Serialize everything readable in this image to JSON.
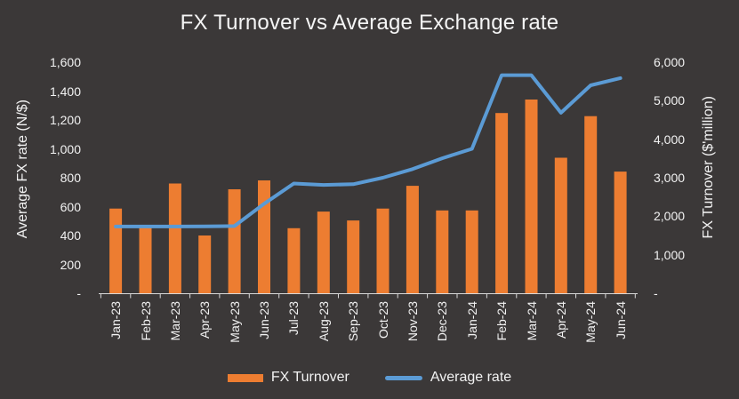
{
  "title": "FX Turnover vs Average Exchange rate",
  "colors": {
    "background": "#3B3838",
    "bar": "#ED7D31",
    "line": "#5B9BD5",
    "text": "#F2F2F2",
    "axis_line": "#D9D9D9"
  },
  "left_axis": {
    "title": "Average FX rate (N/$)",
    "tick_labels": [
      "-",
      "200",
      "400",
      "600",
      "800",
      "1,000",
      "1,200",
      "1,400",
      "1,600"
    ]
  },
  "right_axis": {
    "title": "FX Turnover ($'million)",
    "tick_labels": [
      "-",
      "1,000",
      "2,000",
      "3,000",
      "4,000",
      "5,000",
      "6,000"
    ]
  },
  "legend": {
    "position": "bottom",
    "items": [
      {
        "label": "FX Turnover",
        "swatch": "bar"
      },
      {
        "label": "Average rate",
        "swatch": "line"
      }
    ]
  },
  "chart_data": {
    "type": "combo-bar-line",
    "title": "FX Turnover vs Average Exchange rate",
    "left_ylabel": "Average FX rate (N/$)",
    "right_ylabel": "FX Turnover ($'million)",
    "left_ylim": [
      0,
      1600
    ],
    "right_ylim": [
      0,
      6000
    ],
    "grid": false,
    "legend_position": "bottom",
    "categories": [
      "Jan-23",
      "Feb-23",
      "Mar-23",
      "Apr-23",
      "May-23",
      "Jun-23",
      "Jul-23",
      "Aug-23",
      "Sep-23",
      "Oct-23",
      "Nov-23",
      "Dec-23",
      "Jan-24",
      "Feb-24",
      "Mar-24",
      "Apr-24",
      "May-24",
      "Jun-24"
    ],
    "series": [
      {
        "name": "FX Turnover",
        "type": "bar",
        "axis": "right",
        "unit": "$'million",
        "color": "#ED7D31",
        "values": [
          2200,
          1700,
          2850,
          1500,
          2700,
          2930,
          1690,
          2120,
          1890,
          2200,
          2790,
          2150,
          2150,
          4680,
          5030,
          3520,
          4600,
          3160
        ]
      },
      {
        "name": "Average rate",
        "type": "line",
        "axis": "left",
        "unit": "N/$",
        "color": "#5B9BD5",
        "values": [
          462,
          462,
          462,
          463,
          465,
          620,
          760,
          750,
          755,
          800,
          860,
          935,
          1000,
          1510,
          1510,
          1250,
          1440,
          1490
        ]
      }
    ]
  }
}
